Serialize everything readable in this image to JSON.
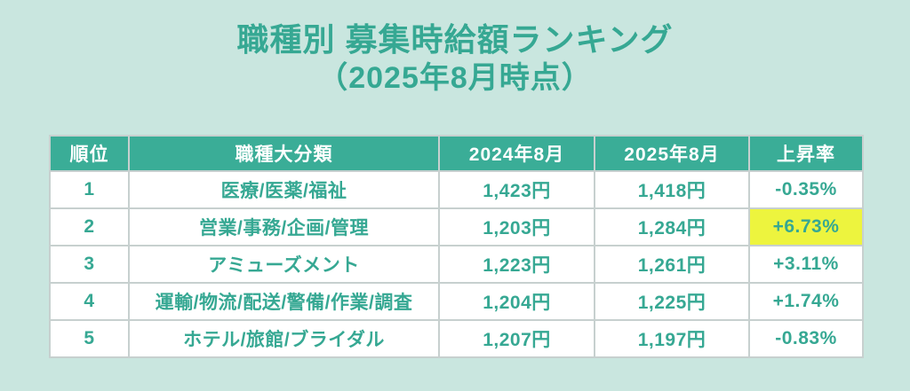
{
  "title": {
    "line1": "職種別 募集時給額ランキング",
    "line2": "（2025年8月時点）"
  },
  "colors": {
    "background": "#c9e6df",
    "accent_teal": "#36a893",
    "header_bg": "#3aad97",
    "highlight_yellow": "#edf43e",
    "cell_bg": "#ffffff",
    "border": "#c7d0cf"
  },
  "chart_data": {
    "type": "table",
    "title": "職種別 募集時給額ランキング（2025年8月時点）",
    "columns": [
      "順位",
      "職種大分類",
      "2024年8月",
      "2025年8月",
      "上昇率"
    ],
    "rows": [
      [
        "1",
        "医療/医薬/福祉",
        "1,423円",
        "1,418円",
        "-0.35%"
      ],
      [
        "2",
        "営業/事務/企画/管理",
        "1,203円",
        "1,284円",
        "+6.73%"
      ],
      [
        "3",
        "アミューズメント",
        "1,223円",
        "1,261円",
        "+3.11%"
      ],
      [
        "4",
        "運輸/物流/配送/警備/作業/調査",
        "1,204円",
        "1,225円",
        "+1.74%"
      ],
      [
        "5",
        "ホテル/旅館/ブライダル",
        "1,207円",
        "1,197円",
        "-0.83%"
      ]
    ],
    "highlight_flags": [
      false,
      true,
      false,
      false,
      false
    ],
    "highlight_column": "上昇率",
    "legend_position": "none",
    "grid": true
  }
}
